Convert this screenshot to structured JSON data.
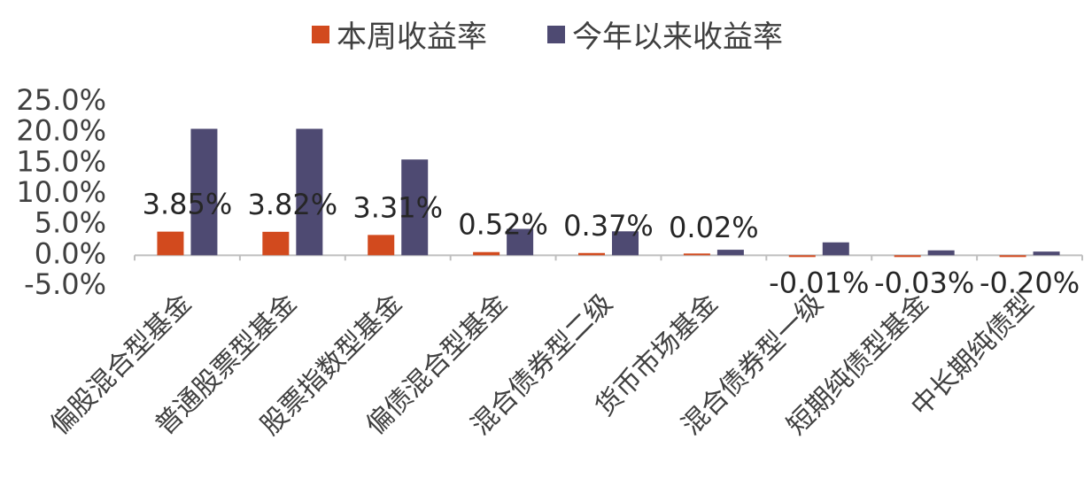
{
  "chart_data": {
    "type": "bar",
    "categories": [
      "偏股混合型基金",
      "普通股票型基金",
      "股票指数型基金",
      "偏债混合型基金",
      "混合债券型二级",
      "货币市场基金",
      "混合债券型一级",
      "短期纯债型基金",
      "中长期纯债型"
    ],
    "series": [
      {
        "name": "本周收益率",
        "color": "#D24A1E",
        "values": [
          3.85,
          3.82,
          3.31,
          0.52,
          0.37,
          0.02,
          -0.01,
          -0.03,
          -0.2
        ],
        "data_labels": [
          "3.85%",
          "3.82%",
          "3.31%",
          "0.52%",
          "0.37%",
          "0.02%",
          "-0.01%",
          "-0.03%",
          "-0.20%"
        ]
      },
      {
        "name": "今年以来收益率",
        "color": "#4E4A72",
        "values": [
          20.6,
          20.6,
          15.6,
          4.3,
          3.9,
          0.9,
          2.1,
          0.8,
          0.6
        ]
      }
    ],
    "ylim": [
      -5,
      25
    ],
    "yticks": [
      25,
      20,
      15,
      10,
      5,
      0,
      -5
    ],
    "ytick_labels": [
      "25.0%",
      "20.0%",
      "15.0%",
      "10.0%",
      "5.0%",
      "0.0%",
      "-5.0%"
    ],
    "legend_position": "top",
    "grid": false,
    "title": "",
    "xlabel": "",
    "ylabel": ""
  }
}
